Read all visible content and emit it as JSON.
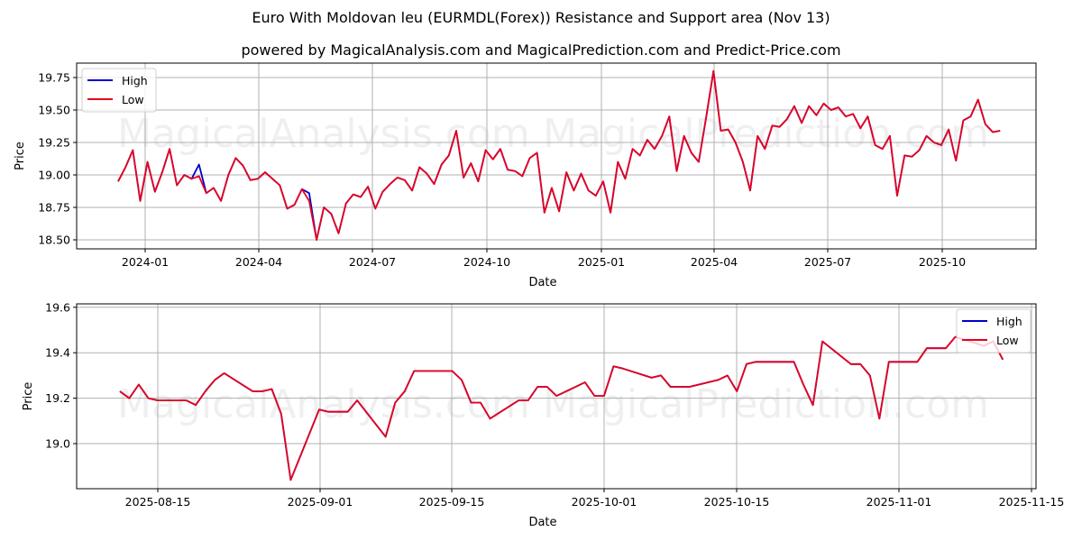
{
  "title": "Euro With Moldovan leu (EURMDL(Forex)) Resistance and Support area (Nov 13)",
  "subtitle": "powered by MagicalAnalysis.com and MagicalPrediction.com and Predict-Price.com",
  "watermarks": [
    "MagicalAnalysis.com",
    "MagicalPrediction.com"
  ],
  "colors": {
    "high": "#0000cc",
    "low": "#e8001c",
    "grid": "#b0b0b0"
  },
  "chart_data": [
    {
      "type": "line",
      "title": "",
      "xlabel": "Date",
      "ylabel": "Price",
      "ylim": [
        18.43,
        19.84
      ],
      "grid": true,
      "legend": {
        "position": "upper left",
        "entries": [
          "High",
          "Low"
        ]
      },
      "xticks": [
        "2024-01",
        "2024-04",
        "2024-07",
        "2024-10",
        "2025-01",
        "2025-04",
        "2025-07",
        "2025-10"
      ],
      "yticks": [
        "18.50",
        "18.75",
        "19.00",
        "19.25",
        "19.50",
        "19.75"
      ],
      "x": [
        "2023-12-07",
        "2023-12-10",
        "2023-12-14",
        "2023-12-18",
        "2023-12-22",
        "2023-12-28",
        "2024-01-04",
        "2024-01-10",
        "2024-01-16",
        "2024-01-22",
        "2024-01-28",
        "2024-02-03",
        "2024-02-09",
        "2024-02-15",
        "2024-02-21",
        "2024-02-27",
        "2024-03-04",
        "2024-03-10",
        "2024-03-16",
        "2024-03-22",
        "2024-03-28",
        "2024-04-03",
        "2024-04-09",
        "2024-04-15",
        "2024-04-21",
        "2024-04-27",
        "2024-05-03",
        "2024-05-09",
        "2024-05-15",
        "2024-05-21",
        "2024-05-27",
        "2024-06-02",
        "2024-06-08",
        "2024-06-14",
        "2024-06-20",
        "2024-06-26",
        "2024-07-02",
        "2024-07-08",
        "2024-07-14",
        "2024-07-20",
        "2024-07-26",
        "2024-08-01",
        "2024-08-07",
        "2024-08-13",
        "2024-08-19",
        "2024-08-25",
        "2024-08-31",
        "2024-09-06",
        "2024-09-12",
        "2024-09-18",
        "2024-09-24",
        "2024-09-30",
        "2024-10-06",
        "2024-10-12",
        "2024-10-18",
        "2024-10-24",
        "2024-10-30",
        "2024-11-05",
        "2024-11-11",
        "2024-11-17",
        "2024-11-23",
        "2024-11-29",
        "2024-12-05",
        "2024-12-11",
        "2024-12-17",
        "2024-12-23",
        "2024-12-29",
        "2025-01-04",
        "2025-01-10",
        "2025-01-16",
        "2025-01-22",
        "2025-01-28",
        "2025-02-03",
        "2025-02-09",
        "2025-02-15",
        "2025-02-21",
        "2025-02-27",
        "2025-03-05",
        "2025-03-11",
        "2025-03-17",
        "2025-03-23",
        "2025-03-29",
        "2025-04-04",
        "2025-04-10",
        "2025-04-16",
        "2025-04-22",
        "2025-04-28",
        "2025-05-04",
        "2025-05-10",
        "2025-05-16",
        "2025-05-22",
        "2025-05-28",
        "2025-06-03",
        "2025-06-09",
        "2025-06-15",
        "2025-06-21",
        "2025-06-27",
        "2025-07-03",
        "2025-07-09",
        "2025-07-15",
        "2025-07-21",
        "2025-07-27",
        "2025-08-02",
        "2025-08-08",
        "2025-08-14",
        "2025-08-20",
        "2025-08-26",
        "2025-09-01",
        "2025-09-07",
        "2025-09-13",
        "2025-09-19",
        "2025-09-25",
        "2025-10-01",
        "2025-10-07",
        "2025-10-13",
        "2025-10-19",
        "2025-10-25",
        "2025-10-31",
        "2025-11-06",
        "2025-11-12"
      ],
      "series": [
        {
          "name": "High",
          "values": [
            18.95,
            19.06,
            19.19,
            18.8,
            19.1,
            18.87,
            19.02,
            19.2,
            18.92,
            19.0,
            18.97,
            19.08,
            18.86,
            18.9,
            18.8,
            19.0,
            19.13,
            19.07,
            18.96,
            18.97,
            19.02,
            18.97,
            18.92,
            18.74,
            18.77,
            18.89,
            18.86,
            18.5,
            18.75,
            18.7,
            18.55,
            18.78,
            18.85,
            18.83,
            18.91,
            18.74,
            18.87,
            18.93,
            18.98,
            18.96,
            18.88,
            19.06,
            19.01,
            18.93,
            19.08,
            19.15,
            19.34,
            18.98,
            19.09,
            18.95,
            19.19,
            19.12,
            19.2,
            19.04,
            19.03,
            18.99,
            19.13,
            19.17,
            18.71,
            18.9,
            18.72,
            19.02,
            18.88,
            19.01,
            18.88,
            18.84,
            18.95,
            18.71,
            19.1,
            18.97,
            19.2,
            19.15,
            19.27,
            19.2,
            19.3,
            19.45,
            19.03,
            19.3,
            19.17,
            19.1,
            19.44,
            19.8,
            19.34,
            19.35,
            19.25,
            19.1,
            18.88,
            19.3,
            19.2,
            19.38,
            19.37,
            19.43,
            19.53,
            19.4,
            19.53,
            19.46,
            19.55,
            19.5,
            19.52,
            19.45,
            19.47,
            19.36,
            19.45,
            19.23,
            19.2,
            19.3,
            18.84,
            19.15,
            19.14,
            19.19,
            19.3,
            19.25,
            19.23,
            19.35,
            19.11,
            19.42,
            19.45,
            19.58,
            19.39,
            19.33,
            19.34
          ],
          "color": "#0000cc"
        },
        {
          "name": "Low",
          "values": [
            18.95,
            19.06,
            19.19,
            18.8,
            19.1,
            18.87,
            19.02,
            19.2,
            18.92,
            19.0,
            18.97,
            18.99,
            18.86,
            18.9,
            18.8,
            19.0,
            19.13,
            19.07,
            18.96,
            18.97,
            19.02,
            18.97,
            18.92,
            18.74,
            18.77,
            18.89,
            18.8,
            18.5,
            18.75,
            18.7,
            18.55,
            18.78,
            18.85,
            18.83,
            18.91,
            18.74,
            18.87,
            18.93,
            18.98,
            18.96,
            18.88,
            19.06,
            19.01,
            18.93,
            19.08,
            19.15,
            19.34,
            18.98,
            19.09,
            18.95,
            19.19,
            19.12,
            19.2,
            19.04,
            19.03,
            18.99,
            19.13,
            19.17,
            18.71,
            18.9,
            18.72,
            19.02,
            18.88,
            19.01,
            18.88,
            18.84,
            18.95,
            18.71,
            19.1,
            18.97,
            19.2,
            19.15,
            19.27,
            19.2,
            19.3,
            19.45,
            19.03,
            19.3,
            19.17,
            19.1,
            19.44,
            19.8,
            19.34,
            19.35,
            19.25,
            19.1,
            18.88,
            19.3,
            19.2,
            19.38,
            19.37,
            19.43,
            19.53,
            19.4,
            19.53,
            19.46,
            19.55,
            19.5,
            19.52,
            19.45,
            19.47,
            19.36,
            19.45,
            19.23,
            19.2,
            19.3,
            18.84,
            19.15,
            19.14,
            19.19,
            19.3,
            19.25,
            19.23,
            19.35,
            19.11,
            19.42,
            19.45,
            19.58,
            19.39,
            19.33,
            19.34
          ],
          "color": "#e8001c"
        }
      ]
    },
    {
      "type": "line",
      "title": "",
      "xlabel": "Date",
      "ylabel": "Price",
      "ylim": [
        18.81,
        19.62
      ],
      "grid": true,
      "legend": {
        "position": "upper right",
        "entries": [
          "High",
          "Low"
        ]
      },
      "xticks": [
        "2025-08-15",
        "2025-09-01",
        "2025-09-15",
        "2025-10-01",
        "2025-10-15",
        "2025-11-01",
        "2025-11-15"
      ],
      "yticks": [
        "19.0",
        "19.2",
        "19.4",
        "19.6"
      ],
      "x": [
        "2025-08-11",
        "2025-08-12",
        "2025-08-13",
        "2025-08-14",
        "2025-08-15",
        "2025-08-18",
        "2025-08-19",
        "2025-08-20",
        "2025-08-21",
        "2025-08-22",
        "2025-08-25",
        "2025-08-26",
        "2025-08-27",
        "2025-08-28",
        "2025-08-29",
        "2025-09-01",
        "2025-09-02",
        "2025-09-03",
        "2025-09-04",
        "2025-09-05",
        "2025-09-08",
        "2025-09-09",
        "2025-09-10",
        "2025-09-11",
        "2025-09-12",
        "2025-09-15",
        "2025-09-16",
        "2025-09-17",
        "2025-09-18",
        "2025-09-19",
        "2025-09-22",
        "2025-09-23",
        "2025-09-24",
        "2025-09-25",
        "2025-09-26",
        "2025-09-29",
        "2025-09-30",
        "2025-10-01",
        "2025-10-02",
        "2025-10-03",
        "2025-10-06",
        "2025-10-07",
        "2025-10-08",
        "2025-10-09",
        "2025-10-10",
        "2025-10-13",
        "2025-10-14",
        "2025-10-15",
        "2025-10-16",
        "2025-10-17",
        "2025-10-20",
        "2025-10-21",
        "2025-10-22",
        "2025-10-23",
        "2025-10-24",
        "2025-10-27",
        "2025-10-28",
        "2025-10-29",
        "2025-10-30",
        "2025-10-31",
        "2025-11-03",
        "2025-11-04",
        "2025-11-05",
        "2025-11-06",
        "2025-11-07",
        "2025-11-10",
        "2025-11-11",
        "2025-11-12"
      ],
      "x_days": [
        -4,
        -3,
        -2,
        -1,
        0,
        3,
        4,
        5,
        6,
        7,
        10,
        11,
        12,
        13,
        14,
        17,
        18,
        19,
        20,
        21,
        24,
        25,
        26,
        27,
        28,
        31,
        32,
        33,
        34,
        35,
        38,
        39,
        40,
        41,
        42,
        45,
        46,
        47,
        48,
        49,
        52,
        53,
        54,
        55,
        56,
        59,
        60,
        61,
        62,
        63,
        66,
        67,
        68,
        69,
        70,
        73,
        74,
        75,
        76,
        77,
        80,
        81,
        82,
        83,
        84,
        87,
        88,
        89
      ],
      "series": [
        {
          "name": "High",
          "values": [
            19.23,
            19.2,
            19.26,
            19.2,
            19.19,
            19.19,
            19.17,
            19.23,
            19.28,
            19.31,
            19.23,
            19.23,
            19.24,
            19.13,
            18.84,
            19.15,
            19.14,
            19.14,
            19.14,
            19.19,
            19.03,
            19.18,
            19.23,
            19.32,
            19.32,
            19.32,
            19.28,
            19.18,
            19.18,
            19.11,
            19.19,
            19.19,
            19.25,
            19.25,
            19.21,
            19.27,
            19.21,
            19.21,
            19.34,
            19.33,
            19.29,
            19.3,
            19.25,
            19.25,
            19.25,
            19.28,
            19.3,
            19.23,
            19.35,
            19.36,
            19.36,
            19.36,
            19.26,
            19.17,
            19.45,
            19.35,
            19.35,
            19.3,
            19.11,
            19.36,
            19.36,
            19.42,
            19.42,
            19.42,
            19.47,
            19.43,
            19.45,
            19.37
          ],
          "color": "#0000cc"
        },
        {
          "name": "Low",
          "values": [
            19.23,
            19.2,
            19.26,
            19.2,
            19.19,
            19.19,
            19.17,
            19.23,
            19.28,
            19.31,
            19.23,
            19.23,
            19.24,
            19.13,
            18.84,
            19.15,
            19.14,
            19.14,
            19.14,
            19.19,
            19.03,
            19.18,
            19.23,
            19.32,
            19.32,
            19.32,
            19.28,
            19.18,
            19.18,
            19.11,
            19.19,
            19.19,
            19.25,
            19.25,
            19.21,
            19.27,
            19.21,
            19.21,
            19.34,
            19.33,
            19.29,
            19.3,
            19.25,
            19.25,
            19.25,
            19.28,
            19.3,
            19.23,
            19.35,
            19.36,
            19.36,
            19.36,
            19.26,
            19.17,
            19.45,
            19.35,
            19.35,
            19.3,
            19.11,
            19.36,
            19.36,
            19.42,
            19.42,
            19.42,
            19.47,
            19.43,
            19.45,
            19.37
          ],
          "color": "#e8001c"
        }
      ]
    }
  ]
}
